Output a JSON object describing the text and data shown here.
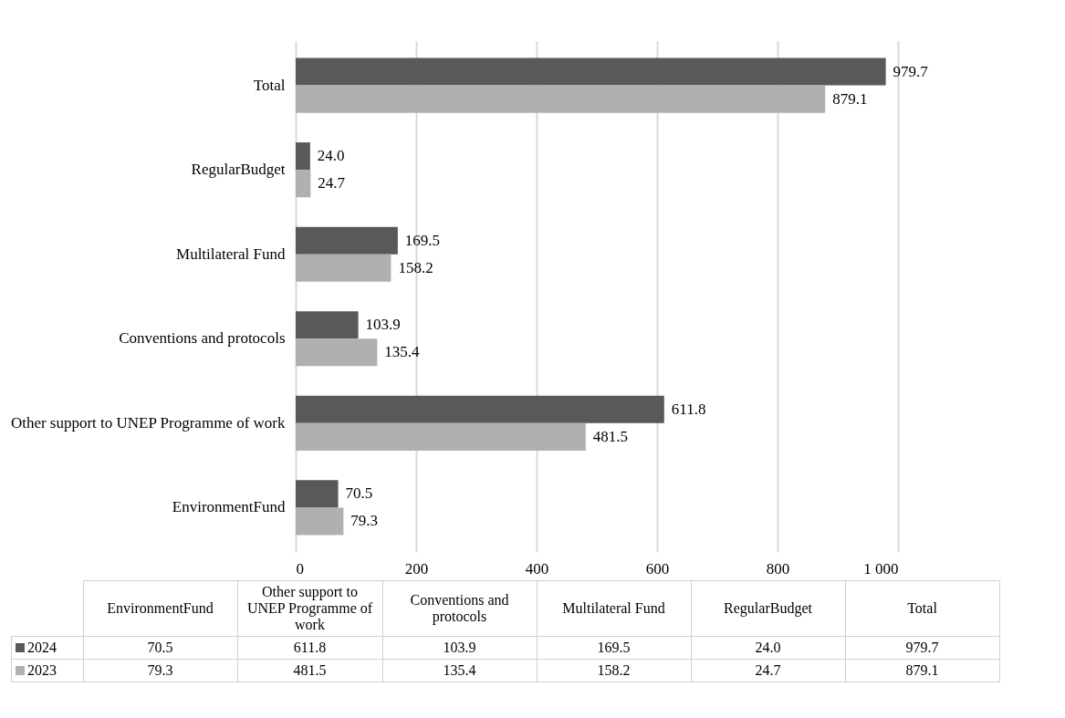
{
  "chart_data": {
    "type": "bar",
    "orientation": "horizontal",
    "categories": [
      "Total",
      "RegularBudget",
      "Multilateral Fund",
      "Conventions and protocols",
      "Other support to UNEP Programme of work",
      "EnvironmentFund"
    ],
    "series": [
      {
        "name": "2024",
        "color": "#595959",
        "values": [
          979.7,
          24.0,
          169.5,
          103.9,
          611.8,
          70.5
        ],
        "value_labels": [
          "979.7",
          "24.0",
          "169.5",
          "103.9",
          "611.8",
          "70.5"
        ]
      },
      {
        "name": "2023",
        "color": "#b0b0b0",
        "values": [
          879.1,
          24.7,
          158.2,
          135.4,
          481.5,
          79.3
        ],
        "value_labels": [
          "879.1",
          "24.7",
          "158.2",
          "135.4",
          "481.5",
          "79.3"
        ]
      }
    ],
    "xlim": [
      0,
      1000
    ],
    "xticks": [
      0,
      200,
      400,
      600,
      800,
      {
        "value": 1000,
        "label": "1 000"
      }
    ],
    "grid": "x",
    "legend": "bottom"
  }
}
